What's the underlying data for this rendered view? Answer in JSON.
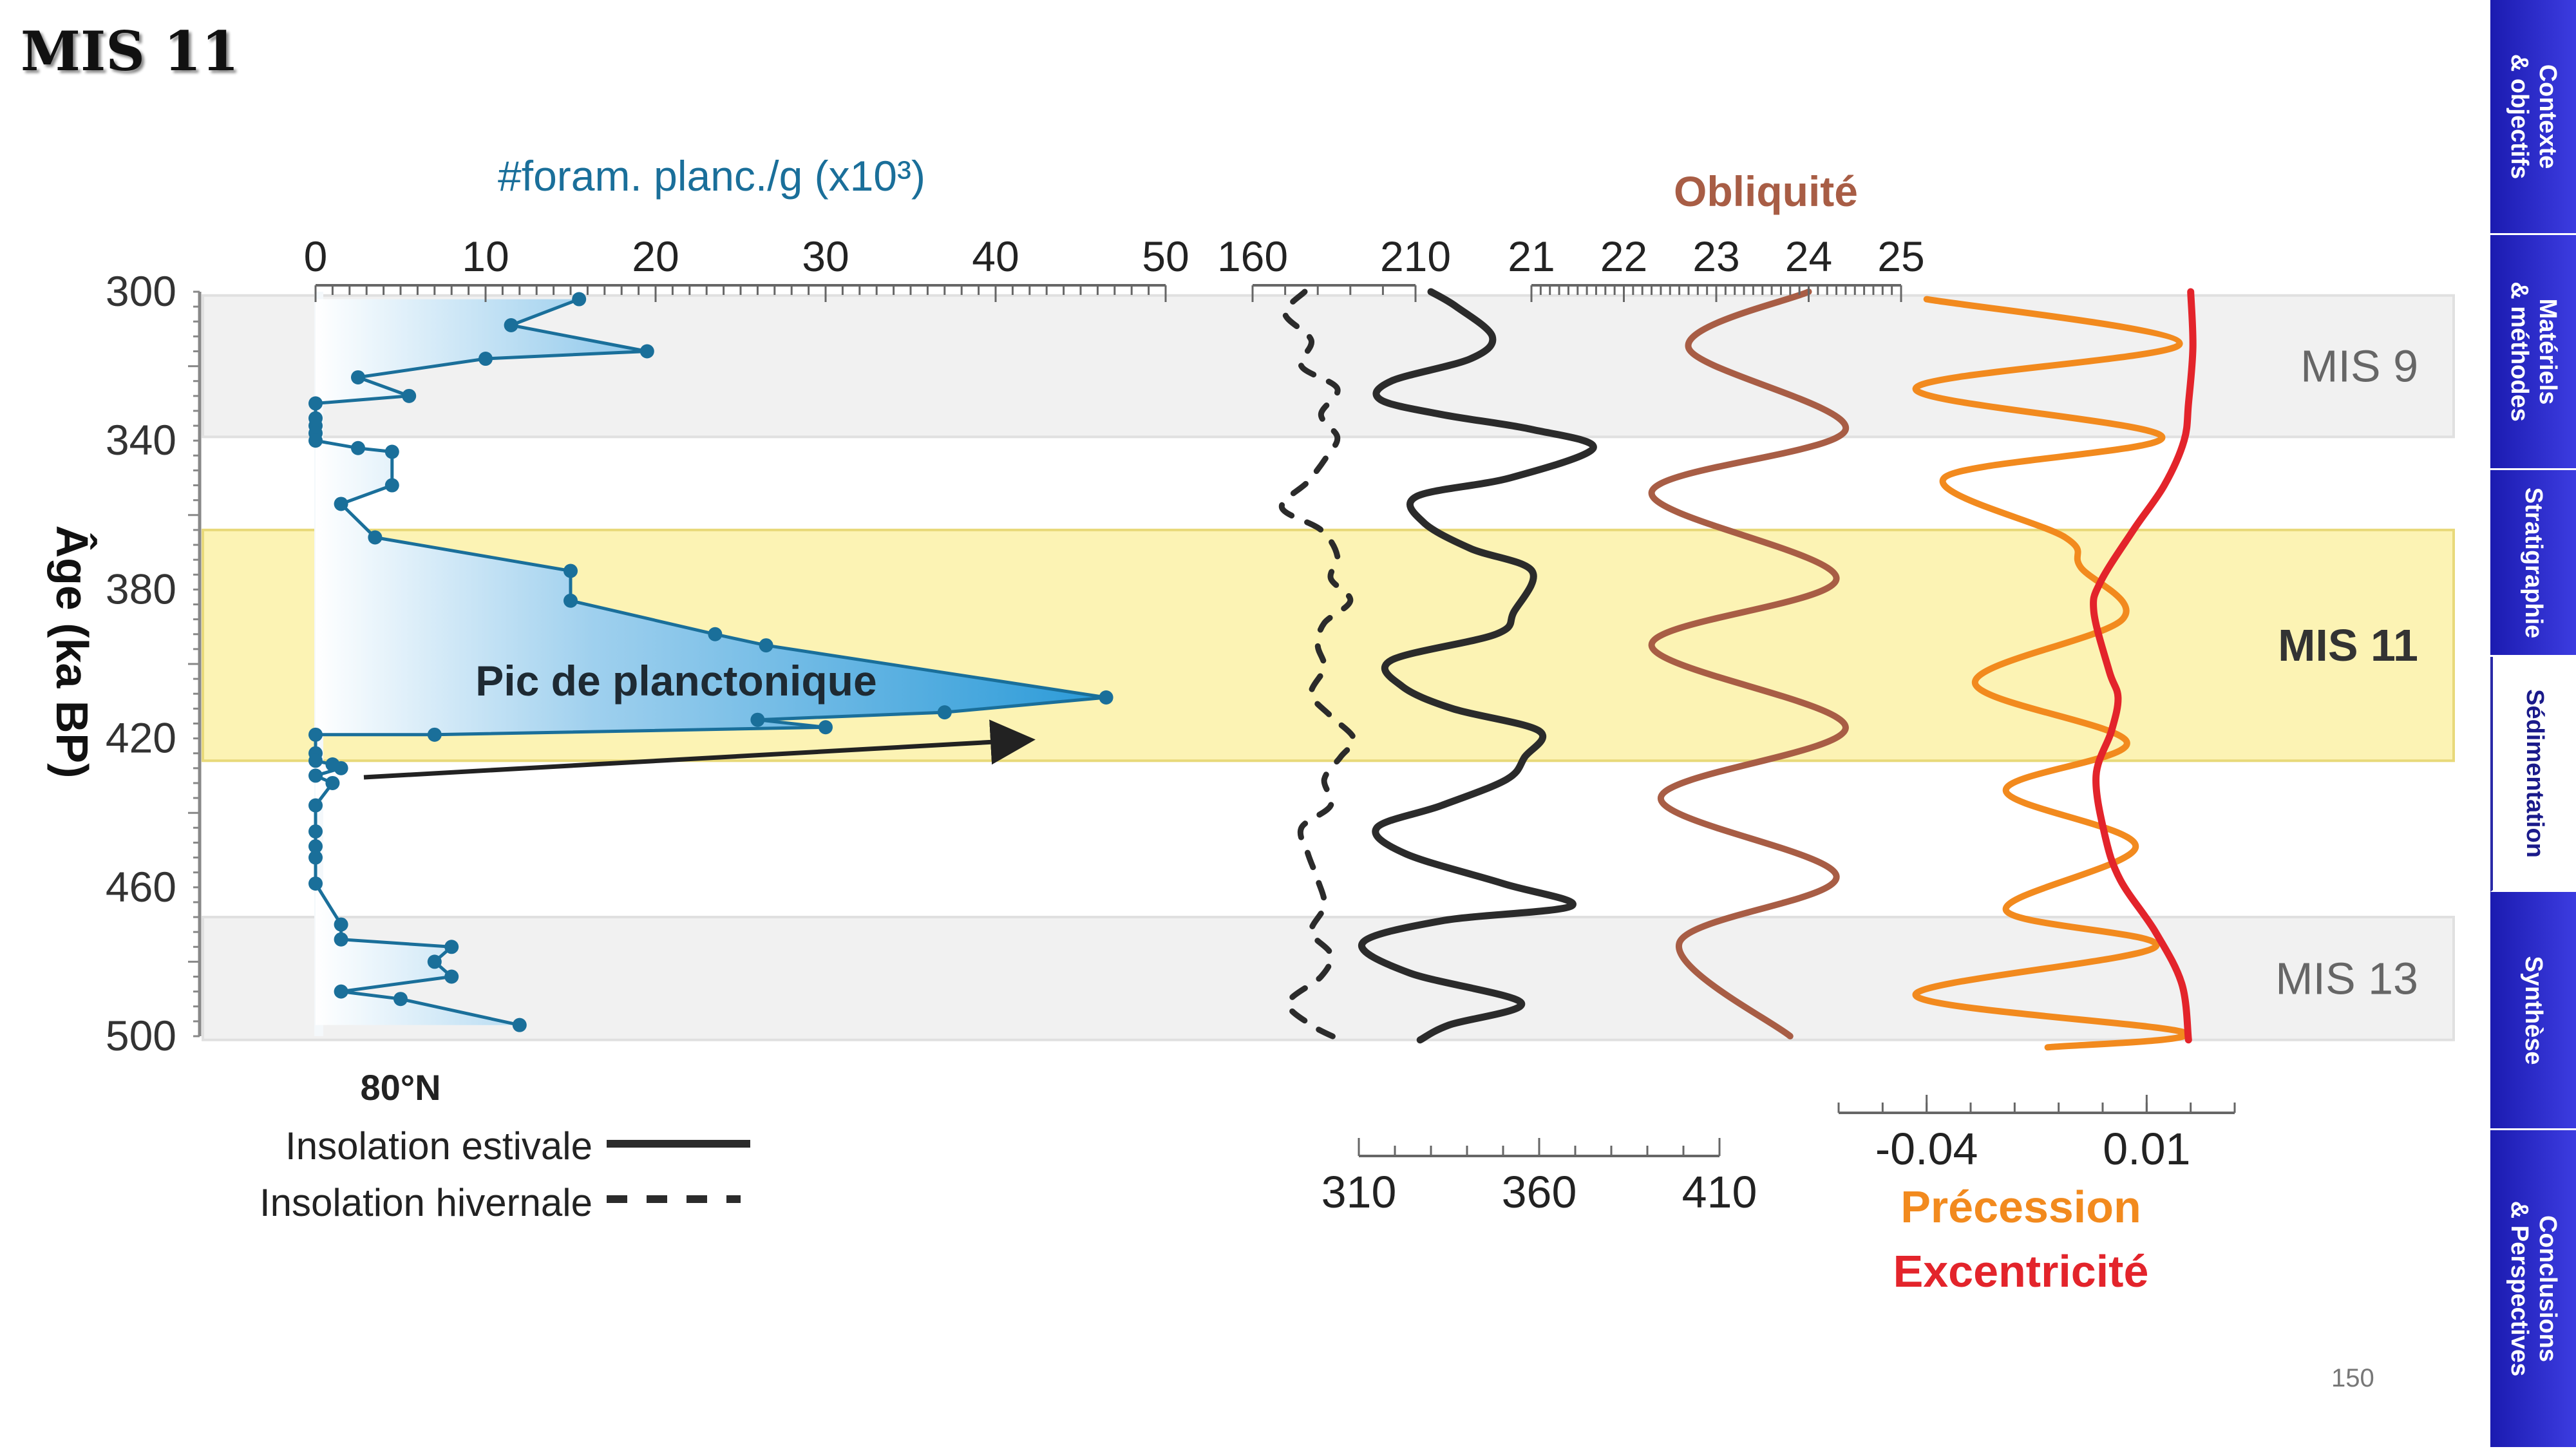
{
  "slide": {
    "title": "MIS 11",
    "page_number": "150"
  },
  "nav": {
    "active_index": 3,
    "tabs": [
      {
        "label": "Contexte\n& objectifs"
      },
      {
        "label": "Matériels\n& méthodes"
      },
      {
        "label": "Stratigraphie"
      },
      {
        "label": "Sédimentation"
      },
      {
        "label": "Synthèse"
      },
      {
        "label": "Conclusions\n& Perspectives"
      }
    ]
  },
  "colors": {
    "foram": "#1a6f9a",
    "foram_fill": "#2a9ad8",
    "summer": "#2b2b2b",
    "winter": "#2b2b2b",
    "obliquity": "#a85d45",
    "precession": "#f28a1e",
    "eccentricity": "#e3242b",
    "mis11_band": "#fcf3b4",
    "glacial_band": "#f1f1f1"
  },
  "chart_data": {
    "type": "line",
    "age_axis": {
      "label": "Âge (ka BP)",
      "range": [
        300,
        500
      ],
      "ticks": [
        "300",
        "340",
        "380",
        "420",
        "460",
        "500"
      ]
    },
    "bands": [
      {
        "label": "MIS 9",
        "from": 301,
        "to": 339,
        "bold": false
      },
      {
        "label": "MIS 11",
        "from": 364,
        "to": 426,
        "bold": true
      },
      {
        "label": "MIS 13",
        "from": 468,
        "to": 501,
        "bold": false
      }
    ],
    "foram": {
      "axis_title": "#foram. planc./g (x10³)",
      "ticks": [
        "0",
        "10",
        "20",
        "30",
        "40",
        "50"
      ],
      "range": [
        0,
        50
      ],
      "annotation": "Pic de planctonique",
      "points": [
        [
          15.5,
          302
        ],
        [
          11.5,
          309
        ],
        [
          19.5,
          316
        ],
        [
          10,
          318
        ],
        [
          2.5,
          323
        ],
        [
          5.5,
          328
        ],
        [
          0,
          330
        ],
        [
          0,
          334
        ],
        [
          0,
          336
        ],
        [
          0,
          338
        ],
        [
          0,
          340
        ],
        [
          2.5,
          342
        ],
        [
          4.5,
          343
        ],
        [
          4.5,
          352
        ],
        [
          1.5,
          357
        ],
        [
          3.5,
          366
        ],
        [
          15,
          375
        ],
        [
          15,
          383
        ],
        [
          23.5,
          392
        ],
        [
          26.5,
          395
        ],
        [
          46.5,
          409
        ],
        [
          37,
          413
        ],
        [
          26,
          415
        ],
        [
          30,
          417
        ],
        [
          7,
          419
        ],
        [
          0,
          419
        ],
        [
          0,
          424
        ],
        [
          0,
          426
        ],
        [
          1,
          427
        ],
        [
          1.5,
          428
        ],
        [
          0,
          430
        ],
        [
          1,
          432
        ],
        [
          0,
          438
        ],
        [
          0,
          445
        ],
        [
          0,
          449
        ],
        [
          0,
          452
        ],
        [
          0,
          459
        ],
        [
          1.5,
          470
        ],
        [
          1.5,
          474
        ],
        [
          8,
          476
        ],
        [
          7,
          480
        ],
        [
          8,
          484
        ],
        [
          1.5,
          488
        ],
        [
          5,
          490
        ],
        [
          12,
          497
        ]
      ]
    },
    "summer_insolation": {
      "ticks": [
        "310",
        "360",
        "410"
      ],
      "range": [
        310,
        410
      ],
      "points": [
        [
          330,
          300
        ],
        [
          337,
          304
        ],
        [
          347,
          312
        ],
        [
          341,
          318
        ],
        [
          319,
          324
        ],
        [
          316,
          329
        ],
        [
          333,
          333
        ],
        [
          358,
          337
        ],
        [
          375,
          342
        ],
        [
          352,
          350
        ],
        [
          326,
          355
        ],
        [
          328,
          362
        ],
        [
          341,
          369
        ],
        [
          358,
          375
        ],
        [
          353,
          386
        ],
        [
          348,
          392
        ],
        [
          319,
          399
        ],
        [
          322,
          406
        ],
        [
          336,
          412
        ],
        [
          360,
          418
        ],
        [
          356,
          425
        ],
        [
          351,
          431
        ],
        [
          333,
          438
        ],
        [
          315,
          444
        ],
        [
          323,
          451
        ],
        [
          350,
          459
        ],
        [
          369,
          465
        ],
        [
          333,
          469
        ],
        [
          311,
          475
        ],
        [
          324,
          483
        ],
        [
          355,
          491
        ],
        [
          335,
          497
        ],
        [
          327,
          501
        ]
      ]
    },
    "winter_insolation": {
      "ticks": [
        "160",
        "210"
      ],
      "range": [
        160,
        210
      ],
      "points": [
        [
          176,
          300
        ],
        [
          170,
          306
        ],
        [
          178,
          313
        ],
        [
          175,
          320
        ],
        [
          186,
          326
        ],
        [
          181,
          333
        ],
        [
          186,
          339
        ],
        [
          183,
          344
        ],
        [
          177,
          351
        ],
        [
          169,
          358
        ],
        [
          181,
          364
        ],
        [
          186,
          371
        ],
        [
          184,
          377
        ],
        [
          190,
          383
        ],
        [
          182,
          389
        ],
        [
          180,
          395
        ],
        [
          182,
          401
        ],
        [
          178,
          408
        ],
        [
          184,
          414
        ],
        [
          191,
          420
        ],
        [
          187,
          425
        ],
        [
          182,
          431
        ],
        [
          184,
          438
        ],
        [
          175,
          444
        ],
        [
          177,
          451
        ],
        [
          180,
          458
        ],
        [
          182,
          465
        ],
        [
          178,
          472
        ],
        [
          184,
          478
        ],
        [
          181,
          484
        ],
        [
          171,
          491
        ],
        [
          178,
          497
        ],
        [
          187,
          501
        ]
      ]
    },
    "obliquity": {
      "title": "Obliquité",
      "ticks": [
        "21",
        "22",
        "23",
        "24",
        "25"
      ],
      "range": [
        21,
        25
      ],
      "points": [
        [
          24.0,
          300
        ],
        [
          22.7,
          315
        ],
        [
          24.4,
          337
        ],
        [
          22.3,
          354
        ],
        [
          24.3,
          377
        ],
        [
          22.3,
          395
        ],
        [
          24.4,
          417
        ],
        [
          22.4,
          436
        ],
        [
          24.3,
          457
        ],
        [
          22.6,
          475
        ],
        [
          23.8,
          500
        ]
      ]
    },
    "precession": {
      "title": "Précession",
      "ticks": [
        "-0.04",
        "0.01"
      ],
      "range": [
        -0.06,
        0.03
      ],
      "points": [
        [
          -0.04,
          302
        ],
        [
          0.0175,
          314
        ],
        [
          -0.0425,
          326
        ],
        [
          0.0135,
          339
        ],
        [
          -0.036,
          350
        ],
        [
          -0.0085,
          366
        ],
        [
          -0.005,
          374
        ],
        [
          0.0045,
          388
        ],
        [
          -0.029,
          405
        ],
        [
          0.0055,
          421
        ],
        [
          -0.022,
          434
        ],
        [
          0.0075,
          449
        ],
        [
          -0.022,
          466
        ],
        [
          0.012,
          476
        ],
        [
          -0.0425,
          489
        ],
        [
          0.0185,
          499
        ],
        [
          -0.0125,
          503
        ]
      ]
    },
    "eccentricity": {
      "title": "Excentricité",
      "points": [
        [
          0.02,
          300
        ],
        [
          0.0205,
          315
        ],
        [
          0.0195,
          330
        ],
        [
          0.0185,
          340
        ],
        [
          0.014,
          352
        ],
        [
          0.007,
          364
        ],
        [
          -0.0005,
          378
        ],
        [
          -0.002,
          386
        ],
        [
          0.0015,
          402
        ],
        [
          0.0035,
          409
        ],
        [
          0.002,
          418
        ],
        [
          -0.0015,
          430
        ],
        [
          0.0005,
          446
        ],
        [
          0.004,
          458
        ],
        [
          0.012,
          472
        ],
        [
          0.018,
          486
        ],
        [
          0.0195,
          501
        ]
      ]
    },
    "legend": {
      "location": "80°N",
      "summer_label": "Insolation estivale",
      "winter_label": "Insolation hivernale"
    }
  }
}
